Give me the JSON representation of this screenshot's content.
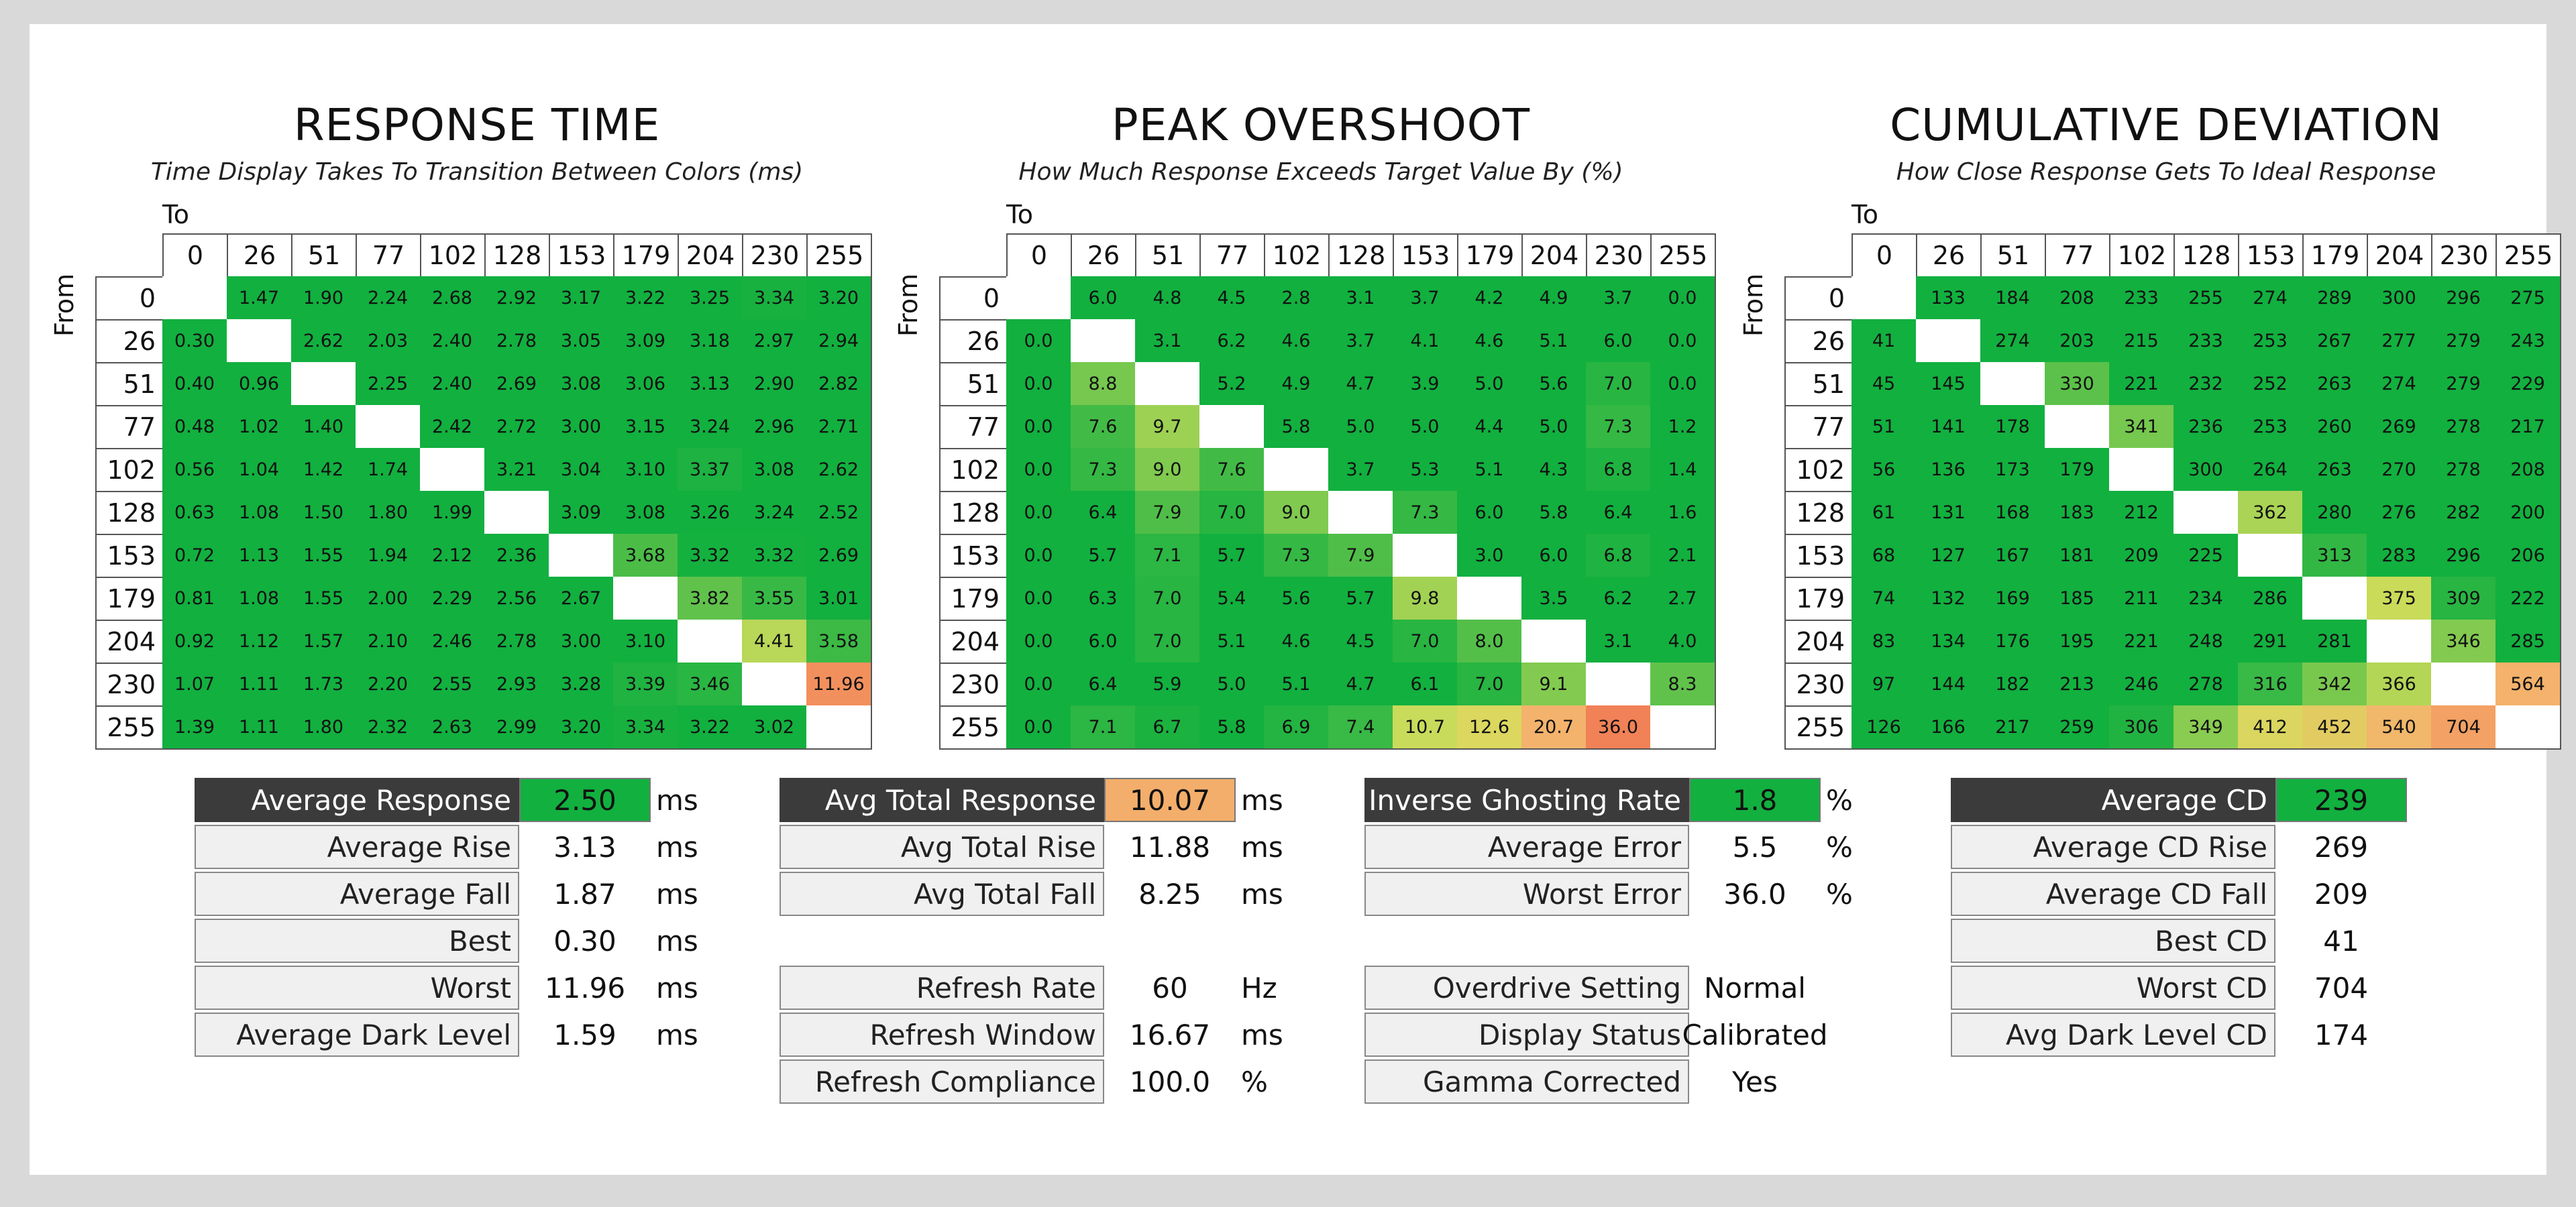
{
  "colors": {
    "green": "#12b03f",
    "yellowgreen": "#c6d85a",
    "orange": "#f3ae6b",
    "red": "#f07452",
    "dark": "#3b3b3b"
  },
  "levels": [
    "0",
    "26",
    "51",
    "77",
    "102",
    "128",
    "153",
    "179",
    "204",
    "230",
    "255"
  ],
  "to_label": "To",
  "from_label": "From",
  "chart_data": [
    {
      "type": "heatmap",
      "title": "RESPONSE TIME",
      "subtitle": "Time Display Takes To Transition Between Colors (ms)",
      "xlabel": "To",
      "ylabel": "From",
      "rows": [
        [
          null,
          "1.47",
          "1.90",
          "2.24",
          "2.68",
          "2.92",
          "3.17",
          "3.22",
          "3.25",
          "3.34",
          "3.20"
        ],
        [
          "0.30",
          null,
          "2.62",
          "2.03",
          "2.40",
          "2.78",
          "3.05",
          "3.09",
          "3.18",
          "2.97",
          "2.94"
        ],
        [
          "0.40",
          "0.96",
          null,
          "2.25",
          "2.40",
          "2.69",
          "3.08",
          "3.06",
          "3.13",
          "2.90",
          "2.82"
        ],
        [
          "0.48",
          "1.02",
          "1.40",
          null,
          "2.42",
          "2.72",
          "3.00",
          "3.15",
          "3.24",
          "2.96",
          "2.71"
        ],
        [
          "0.56",
          "1.04",
          "1.42",
          "1.74",
          null,
          "3.21",
          "3.04",
          "3.10",
          "3.37",
          "3.08",
          "2.62"
        ],
        [
          "0.63",
          "1.08",
          "1.50",
          "1.80",
          "1.99",
          null,
          "3.09",
          "3.08",
          "3.26",
          "3.24",
          "2.52"
        ],
        [
          "0.72",
          "1.13",
          "1.55",
          "1.94",
          "2.12",
          "2.36",
          null,
          "3.68",
          "3.32",
          "3.32",
          "2.69"
        ],
        [
          "0.81",
          "1.08",
          "1.55",
          "2.00",
          "2.29",
          "2.56",
          "2.67",
          null,
          "3.82",
          "3.55",
          "3.01"
        ],
        [
          "0.92",
          "1.12",
          "1.57",
          "2.10",
          "2.46",
          "2.78",
          "3.00",
          "3.10",
          null,
          "4.41",
          "3.58"
        ],
        [
          "1.07",
          "1.11",
          "1.73",
          "2.20",
          "2.55",
          "2.93",
          "3.28",
          "3.39",
          "3.46",
          null,
          "11.96"
        ],
        [
          "1.39",
          "1.11",
          "1.80",
          "2.32",
          "2.63",
          "2.99",
          "3.20",
          "3.34",
          "3.22",
          "3.02",
          null
        ]
      ]
    },
    {
      "type": "heatmap",
      "title": "PEAK OVERSHOOT",
      "subtitle": "How Much Response Exceeds Target Value By (%)",
      "xlabel": "To",
      "ylabel": "From",
      "rows": [
        [
          null,
          "6.0",
          "4.8",
          "4.5",
          "2.8",
          "3.1",
          "3.7",
          "4.2",
          "4.9",
          "3.7",
          "0.0"
        ],
        [
          "0.0",
          null,
          "3.1",
          "6.2",
          "4.6",
          "3.7",
          "4.1",
          "4.6",
          "5.1",
          "6.0",
          "0.0"
        ],
        [
          "0.0",
          "8.8",
          null,
          "5.2",
          "4.9",
          "4.7",
          "3.9",
          "5.0",
          "5.6",
          "7.0",
          "0.0"
        ],
        [
          "0.0",
          "7.6",
          "9.7",
          null,
          "5.8",
          "5.0",
          "5.0",
          "4.4",
          "5.0",
          "7.3",
          "1.2"
        ],
        [
          "0.0",
          "7.3",
          "9.0",
          "7.6",
          null,
          "3.7",
          "5.3",
          "5.1",
          "4.3",
          "6.8",
          "1.4"
        ],
        [
          "0.0",
          "6.4",
          "7.9",
          "7.0",
          "9.0",
          null,
          "7.3",
          "6.0",
          "5.8",
          "6.4",
          "1.6"
        ],
        [
          "0.0",
          "5.7",
          "7.1",
          "5.7",
          "7.3",
          "7.9",
          null,
          "3.0",
          "6.0",
          "6.8",
          "2.1"
        ],
        [
          "0.0",
          "6.3",
          "7.0",
          "5.4",
          "5.6",
          "5.7",
          "9.8",
          null,
          "3.5",
          "6.2",
          "2.7"
        ],
        [
          "0.0",
          "6.0",
          "7.0",
          "5.1",
          "4.6",
          "4.5",
          "7.0",
          "8.0",
          null,
          "3.1",
          "4.0"
        ],
        [
          "0.0",
          "6.4",
          "5.9",
          "5.0",
          "5.1",
          "4.7",
          "6.1",
          "7.0",
          "9.1",
          null,
          "8.3"
        ],
        [
          "0.0",
          "7.1",
          "6.7",
          "5.8",
          "6.9",
          "7.4",
          "10.7",
          "12.6",
          "20.7",
          "36.0",
          null
        ]
      ]
    },
    {
      "type": "heatmap",
      "title": "CUMULATIVE DEVIATION",
      "subtitle": "How Close Response Gets To Ideal Response",
      "xlabel": "To",
      "ylabel": "From",
      "rows": [
        [
          null,
          "133",
          "184",
          "208",
          "233",
          "255",
          "274",
          "289",
          "300",
          "296",
          "275"
        ],
        [
          "41",
          null,
          "274",
          "203",
          "215",
          "233",
          "253",
          "267",
          "277",
          "279",
          "243"
        ],
        [
          "45",
          "145",
          null,
          "330",
          "221",
          "232",
          "252",
          "263",
          "274",
          "279",
          "229"
        ],
        [
          "51",
          "141",
          "178",
          null,
          "341",
          "236",
          "253",
          "260",
          "269",
          "278",
          "217"
        ],
        [
          "56",
          "136",
          "173",
          "179",
          null,
          "300",
          "264",
          "263",
          "270",
          "278",
          "208"
        ],
        [
          "61",
          "131",
          "168",
          "183",
          "212",
          null,
          "362",
          "280",
          "276",
          "282",
          "200"
        ],
        [
          "68",
          "127",
          "167",
          "181",
          "209",
          "225",
          null,
          "313",
          "283",
          "296",
          "206"
        ],
        [
          "74",
          "132",
          "169",
          "185",
          "211",
          "234",
          "286",
          null,
          "375",
          "309",
          "222"
        ],
        [
          "83",
          "134",
          "176",
          "195",
          "221",
          "248",
          "291",
          "281",
          null,
          "346",
          "285"
        ],
        [
          "97",
          "144",
          "182",
          "213",
          "246",
          "278",
          "316",
          "342",
          "366",
          null,
          "564"
        ],
        [
          "126",
          "166",
          "217",
          "259",
          "306",
          "349",
          "412",
          "452",
          "540",
          "704",
          null
        ]
      ]
    }
  ],
  "stats": {
    "response": [
      {
        "label": "Average Response",
        "value": "2.50",
        "unit": "ms",
        "dark": true,
        "boxColor": "#12b03f"
      },
      {
        "label": "Average Rise",
        "value": "3.13",
        "unit": "ms"
      },
      {
        "label": "Average Fall",
        "value": "1.87",
        "unit": "ms"
      },
      {
        "label": "Best",
        "value": "0.30",
        "unit": "ms"
      },
      {
        "label": "Worst",
        "value": "11.96",
        "unit": "ms"
      },
      {
        "label": "Average Dark Level",
        "value": "1.59",
        "unit": "ms"
      }
    ],
    "total": [
      {
        "label": "Avg Total Response",
        "value": "10.07",
        "unit": "ms",
        "dark": true,
        "boxColor": "#f3ae6b"
      },
      {
        "label": "Avg Total Rise",
        "value": "11.88",
        "unit": "ms"
      },
      {
        "label": "Avg Total Fall",
        "value": "8.25",
        "unit": "ms"
      }
    ],
    "refresh": [
      {
        "label": "Refresh Rate",
        "value": "60",
        "unit": "Hz"
      },
      {
        "label": "Refresh Window",
        "value": "16.67",
        "unit": "ms"
      },
      {
        "label": "Refresh Compliance",
        "value": "100.0",
        "unit": "%"
      }
    ],
    "overshoot": [
      {
        "label": "Inverse Ghosting Rate",
        "value": "1.8",
        "unit": "%",
        "dark": true,
        "boxColor": "#12b03f"
      },
      {
        "label": "Average Error",
        "value": "5.5",
        "unit": "%"
      },
      {
        "label": "Worst Error",
        "value": "36.0",
        "unit": "%"
      }
    ],
    "settings": [
      {
        "label": "Overdrive Setting",
        "value": "Normal",
        "unit": ""
      },
      {
        "label": "Display Status",
        "value": "Calibrated",
        "unit": ""
      },
      {
        "label": "Gamma Corrected",
        "value": "Yes",
        "unit": ""
      }
    ],
    "cd": [
      {
        "label": "Average CD",
        "value": "239",
        "unit": "",
        "dark": true,
        "boxColor": "#12b03f"
      },
      {
        "label": "Average CD Rise",
        "value": "269",
        "unit": ""
      },
      {
        "label": "Average CD Fall",
        "value": "209",
        "unit": ""
      },
      {
        "label": "Best CD",
        "value": "41",
        "unit": ""
      },
      {
        "label": "Worst CD",
        "value": "704",
        "unit": ""
      },
      {
        "label": "Avg Dark Level CD",
        "value": "174",
        "unit": ""
      }
    ]
  }
}
